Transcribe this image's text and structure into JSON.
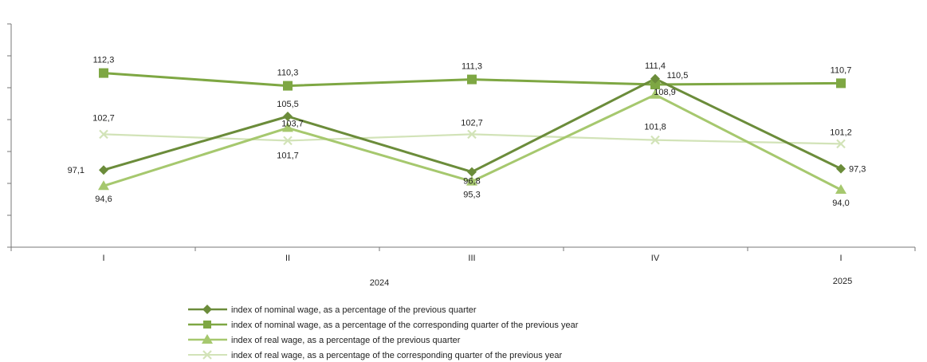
{
  "chart_data": {
    "type": "line",
    "categories": [
      "I",
      "II",
      "III",
      "IV",
      "I"
    ],
    "year_labels": [
      "2024",
      "2025"
    ],
    "ylim": [
      85,
      120
    ],
    "grid": false,
    "legend_position": "bottom",
    "series": [
      {
        "name": "index of nominal wage, as a percentage of the previous quarter",
        "marker": "diamond",
        "color": "#6b8c3a",
        "values": [
          97.1,
          105.5,
          96.8,
          111.4,
          97.3
        ],
        "labels": [
          "97,1",
          "105,5",
          "96,8",
          "111,4",
          "97,3"
        ]
      },
      {
        "name": "index of nominal wage, as a percentage of the corresponding quarter of the previous year",
        "marker": "square",
        "color": "#7ea743",
        "values": [
          112.3,
          110.3,
          111.3,
          110.5,
          110.7
        ],
        "labels": [
          "112,3",
          "110,3",
          "111,3",
          "110,5",
          "110,7"
        ]
      },
      {
        "name": "index of real wage, as a percentage of the previous quarter",
        "marker": "triangle",
        "color": "#a6c86e",
        "values": [
          94.6,
          103.7,
          95.3,
          108.9,
          94.0
        ],
        "labels": [
          "94,6",
          "103,7",
          "95,3",
          "108,9",
          "94,0"
        ]
      },
      {
        "name": "index of real wage, as a percentage of the  corresponding quarter of the previous year",
        "marker": "x",
        "color": "#d2e3b8",
        "values": [
          102.7,
          101.7,
          102.7,
          101.8,
          101.2
        ],
        "labels": [
          "102,7",
          "101,7",
          "102,7",
          "101,8",
          "101,2"
        ]
      }
    ]
  }
}
